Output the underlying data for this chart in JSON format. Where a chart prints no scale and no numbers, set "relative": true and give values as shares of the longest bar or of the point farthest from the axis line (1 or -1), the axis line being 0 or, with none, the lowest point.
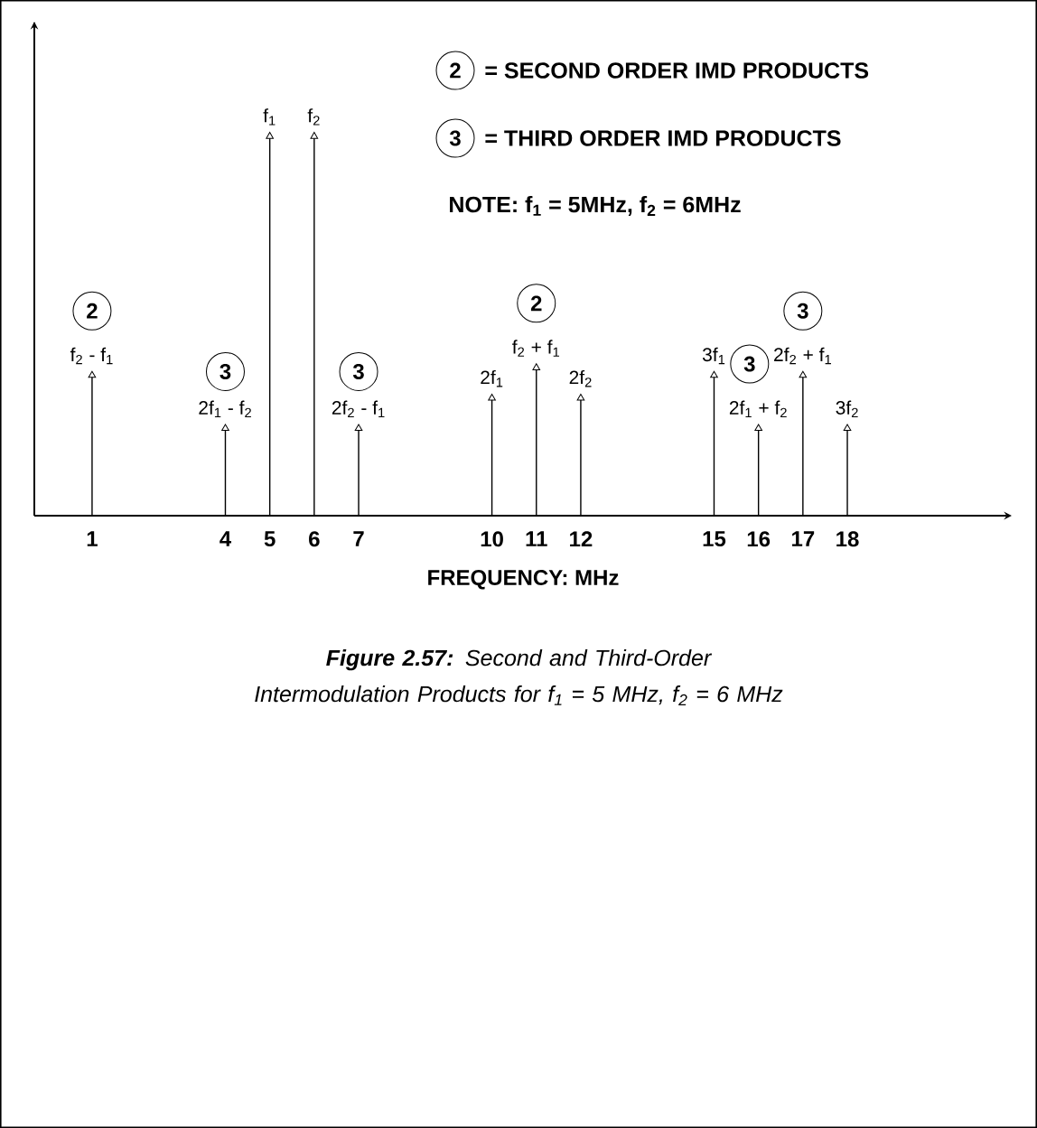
{
  "chart_data": {
    "type": "lollipop",
    "relative": true,
    "color": "#000000",
    "marker": "triangle",
    "x": [
      1,
      4,
      5,
      6,
      7,
      10,
      11,
      12,
      15,
      16,
      17,
      18
    ],
    "values": [
      0.37,
      0.23,
      1,
      1,
      0.23,
      0.31,
      0.39,
      0.31,
      0.37,
      0.23,
      0.37,
      0.23
    ],
    "xlim": [
      -0.3,
      21.7
    ],
    "xticks": [
      1,
      4,
      5,
      6,
      7,
      10,
      11,
      12,
      15,
      16,
      17,
      18
    ],
    "xlabel": "FREQUENCY: MHz",
    "annotations": [
      {
        "text": "2",
        "x": 1,
        "y": 0.54
      },
      {
        "text": "f$_{2}$ - f$_{1}$",
        "x": 1,
        "y": 0.37
      },
      {
        "text": "3",
        "x": 4,
        "y": 0.38
      },
      {
        "text": "2f$_{1}$ - f$_{2}$",
        "x": 4,
        "y": 0.23
      },
      {
        "text": "f$_{1}$",
        "x": 5,
        "y": 1
      },
      {
        "text": "f$_{2}$",
        "x": 6,
        "y": 1
      },
      {
        "text": "3",
        "x": 7,
        "y": 0.38
      },
      {
        "text": "2f$_{2}$ - f$_{1}$",
        "x": 7,
        "y": 0.23
      },
      {
        "text": "2f$_{1}$",
        "x": 10,
        "y": 0.31
      },
      {
        "text": "2",
        "x": 11,
        "y": 0.56
      },
      {
        "text": "f$_{2}$ + f$_{1}$",
        "x": 11,
        "y": 0.39
      },
      {
        "text": "2f$_{2}$",
        "x": 12,
        "y": 0.31
      },
      {
        "text": "3f$_{1}$",
        "x": 15,
        "y": 0.37
      },
      {
        "text": "3",
        "x": 15.8,
        "y": 0.4
      },
      {
        "text": "2f$_{1}$ + f$_{2}$",
        "x": 16,
        "y": 0.23
      },
      {
        "text": "3",
        "x": 17,
        "y": 0.54
      },
      {
        "text": "2f$_{2}$ + f$_{1}$",
        "x": 17,
        "y": 0.37
      },
      {
        "text": "3f$_{2}$",
        "x": 18,
        "y": 0.23
      },
      "2",
      "= SECOND ORDER IMD PRODUCTS",
      "3",
      "= THIRD ORDER IMD PRODUCTS",
      "NOTE:  f$_{1}$ = 5MHz, f$_{2}$ = 6MHz",
      "**Figure 2.57:** Second and Third-Order Intermodulation Products for f$_{1}$ = 5 MHz, f$_{2}$ = 6 MHz"
    ]
  }
}
